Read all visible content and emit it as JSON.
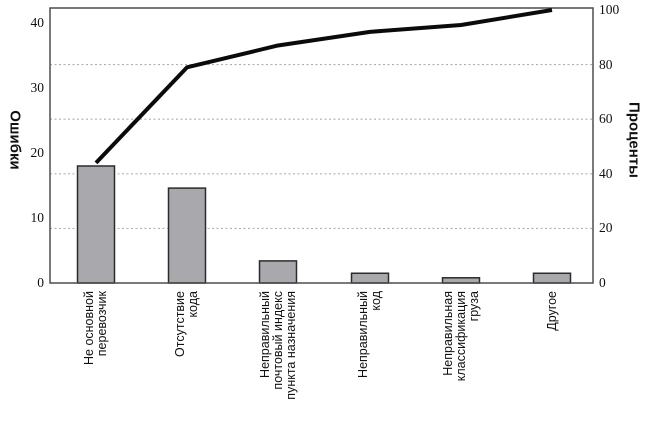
{
  "chart_data": {
    "type": "bar",
    "subtype": "pareto-combo",
    "title": "",
    "categories": [
      "Не основной перевозчик",
      "Отсутствие кода",
      "Неправильный почтовый индекс пункта назначения",
      "Неправильный код",
      "Неправильная классификация груза",
      "Другое"
    ],
    "category_label_lines": [
      [
        "Не основной",
        "перевозчик"
      ],
      [
        "Отсутствие",
        "кода"
      ],
      [
        "Неправильный",
        "почтовый индекс",
        "пункта назначения"
      ],
      [
        "Неправильный",
        "код"
      ],
      [
        "Неправильная",
        "классификация",
        "груза"
      ],
      [
        "Другое"
      ]
    ],
    "series": [
      {
        "role": "errors-bars",
        "type": "bar",
        "axis": "left",
        "values": [
          18,
          14.6,
          3.4,
          1.5,
          0.8,
          1.5
        ]
      },
      {
        "role": "cumulative-line",
        "type": "line",
        "axis": "right",
        "values": [
          44,
          79,
          87,
          92,
          94.5,
          100
        ]
      }
    ],
    "left_axis": {
      "label": "Ошибки",
      "ticks": [
        0,
        10,
        20,
        30,
        40
      ],
      "range": [
        0,
        40
      ]
    },
    "right_axis": {
      "label": "Проценты",
      "ticks": [
        0,
        20,
        40,
        60,
        80,
        100
      ],
      "range": [
        0,
        100
      ]
    },
    "gridlines": {
      "orientation": "horizontal",
      "at_right_axis_values": [
        20,
        40,
        60,
        80
      ],
      "style": "dotted"
    },
    "legend_position": "none"
  },
  "colors": {
    "bar_fill": "#a9a9ad",
    "bar_stroke": "#2b2b2b",
    "cumulative_line": "#0b0b0b",
    "plot_border": "#4d4d4d",
    "gridline": "#b0b0b0",
    "text": "#111111",
    "background": "#ffffff"
  }
}
